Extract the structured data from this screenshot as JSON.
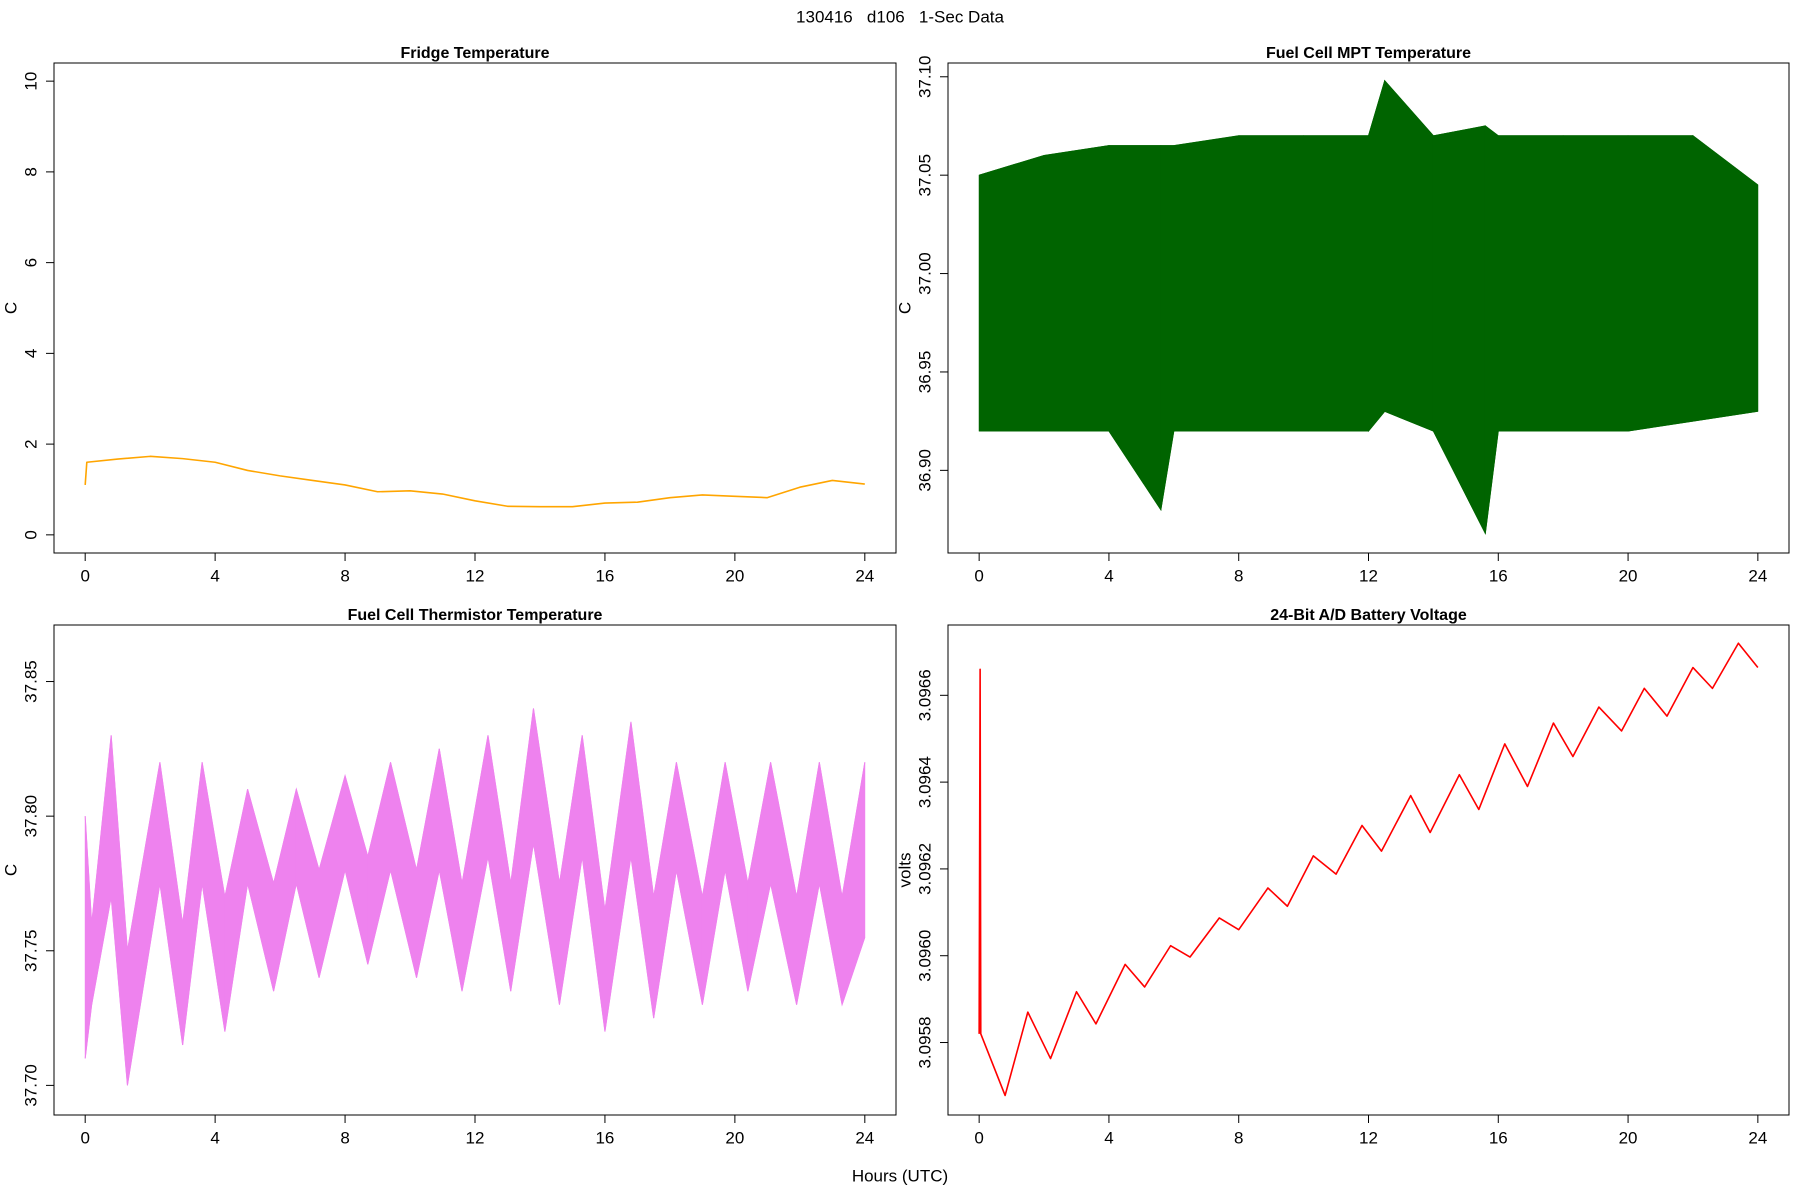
{
  "title": "130416   d106   1-Sec Data",
  "xlabel": "Hours (UTC)",
  "chart_data": [
    {
      "type": "line",
      "title": "Fridge Temperature",
      "ylabel": "C",
      "x": [
        0,
        0.05,
        1,
        2,
        3,
        4,
        5,
        6,
        7,
        8,
        9,
        10,
        11,
        12,
        13,
        14,
        15,
        16,
        17,
        18,
        19,
        20,
        21,
        22,
        23,
        24
      ],
      "series": [
        {
          "color": "#ffa500",
          "values": [
            1.1,
            1.6,
            1.67,
            1.73,
            1.68,
            1.6,
            1.42,
            1.3,
            1.2,
            1.1,
            0.95,
            0.97,
            0.9,
            0.75,
            0.63,
            0.62,
            0.62,
            0.7,
            0.72,
            0.82,
            0.88,
            0.85,
            0.82,
            1.05,
            1.2,
            1.12
          ]
        }
      ],
      "xlim": [
        -0.96,
        24.96
      ],
      "xticks": [
        0,
        4,
        8,
        12,
        16,
        20,
        24
      ],
      "ylim": [
        -0.4,
        10.4
      ],
      "yticks": [
        0,
        2,
        4,
        6,
        8,
        10
      ]
    },
    {
      "type": "band",
      "title": "Fuel Cell MPT Temperature",
      "ylabel": "C",
      "x": [
        0,
        2,
        4,
        5.6,
        6,
        8,
        10,
        12,
        12.5,
        14,
        15.6,
        16,
        18,
        20,
        22,
        24
      ],
      "series": [
        {
          "color": "#006400",
          "low": [
            36.92,
            36.92,
            36.92,
            36.88,
            36.92,
            36.92,
            36.92,
            36.92,
            36.93,
            36.92,
            36.868,
            36.92,
            36.92,
            36.92,
            36.925,
            36.93
          ],
          "high": [
            37.05,
            37.06,
            37.065,
            37.065,
            37.065,
            37.07,
            37.07,
            37.07,
            37.098,
            37.07,
            37.075,
            37.07,
            37.07,
            37.07,
            37.07,
            37.045
          ]
        }
      ],
      "xlim": [
        -0.96,
        24.96
      ],
      "xticks": [
        0,
        4,
        8,
        12,
        16,
        20,
        24
      ],
      "ylim": [
        36.858,
        37.107
      ],
      "yticks": [
        {
          "value": 36.9,
          "label": "36.90"
        },
        {
          "value": 36.95,
          "label": "36.95"
        },
        {
          "value": 37.0,
          "label": "37.00"
        },
        {
          "value": 37.05,
          "label": "37.05"
        },
        {
          "value": 37.1,
          "label": "37.10"
        }
      ]
    },
    {
      "type": "band",
      "title": "Fuel Cell Thermistor Temperature",
      "ylabel": "C",
      "x": [
        0,
        0.2,
        0.8,
        1.3,
        2.3,
        3.0,
        3.6,
        4.3,
        5.0,
        5.8,
        6.5,
        7.2,
        8.0,
        8.7,
        9.4,
        10.2,
        10.9,
        11.6,
        12.4,
        13.1,
        13.8,
        14.6,
        15.3,
        16.0,
        16.8,
        17.5,
        18.2,
        19.0,
        19.7,
        20.4,
        21.1,
        21.9,
        22.6,
        23.3,
        24.0
      ],
      "series": [
        {
          "color": "#ee82ee",
          "low": [
            37.71,
            37.73,
            37.77,
            37.7,
            37.775,
            37.715,
            37.775,
            37.72,
            37.775,
            37.735,
            37.775,
            37.74,
            37.78,
            37.745,
            37.78,
            37.74,
            37.78,
            37.735,
            37.785,
            37.735,
            37.79,
            37.73,
            37.785,
            37.72,
            37.785,
            37.725,
            37.78,
            37.73,
            37.78,
            37.735,
            37.775,
            37.73,
            37.775,
            37.73,
            37.755
          ],
          "high": [
            37.8,
            37.76,
            37.83,
            37.75,
            37.82,
            37.76,
            37.82,
            37.77,
            37.81,
            37.775,
            37.81,
            37.78,
            37.815,
            37.785,
            37.82,
            37.78,
            37.825,
            37.775,
            37.83,
            37.775,
            37.84,
            37.775,
            37.83,
            37.765,
            37.835,
            37.77,
            37.82,
            37.77,
            37.82,
            37.775,
            37.82,
            37.77,
            37.82,
            37.77,
            37.82
          ]
        }
      ],
      "xlim": [
        -0.96,
        24.96
      ],
      "xticks": [
        0,
        4,
        8,
        12,
        16,
        20,
        24
      ],
      "ylim": [
        37.689,
        37.871
      ],
      "yticks": [
        {
          "value": 37.7,
          "label": "37.70"
        },
        {
          "value": 37.75,
          "label": "37.75"
        },
        {
          "value": 37.8,
          "label": "37.80"
        },
        {
          "value": 37.85,
          "label": "37.85"
        }
      ]
    },
    {
      "type": "line",
      "title": "24-Bit A/D Battery Voltage",
      "ylabel": "volts",
      "x": [
        0,
        0.03,
        0.05,
        0.8,
        1.5,
        2.2,
        3.0,
        3.6,
        4.5,
        5.1,
        5.9,
        6.5,
        7.4,
        8.0,
        8.9,
        9.5,
        10.3,
        11.0,
        11.8,
        12.4,
        13.3,
        13.9,
        14.8,
        15.4,
        16.2,
        16.9,
        17.7,
        18.3,
        19.1,
        19.8,
        20.5,
        21.2,
        22.0,
        22.6,
        23.4,
        24.0
      ],
      "series": [
        {
          "color": "#ff0000",
          "values": [
            3.09582,
            3.09666,
            3.09582,
            3.095678,
            3.09587,
            3.095763,
            3.095917,
            3.095843,
            3.09598,
            3.095928,
            3.096023,
            3.095997,
            3.096087,
            3.09606,
            3.096156,
            3.096114,
            3.09623,
            3.096188,
            3.0963,
            3.096241,
            3.096369,
            3.096284,
            3.096417,
            3.096337,
            3.096488,
            3.09639,
            3.096536,
            3.096459,
            3.096573,
            3.096518,
            3.096616,
            3.096552,
            3.096664,
            3.096616,
            3.09672,
            3.096664
          ]
        }
      ],
      "xlim": [
        -0.96,
        24.96
      ],
      "xticks": [
        0,
        4,
        8,
        12,
        16,
        20,
        24
      ],
      "ylim": [
        3.095633,
        3.096762
      ],
      "yticks": [
        {
          "value": 3.0958,
          "label": "3.0958"
        },
        {
          "value": 3.096,
          "label": "3.0960"
        },
        {
          "value": 3.0962,
          "label": "3.0962"
        },
        {
          "value": 3.0964,
          "label": "3.0964"
        },
        {
          "value": 3.0966,
          "label": "3.0966"
        }
      ]
    }
  ]
}
